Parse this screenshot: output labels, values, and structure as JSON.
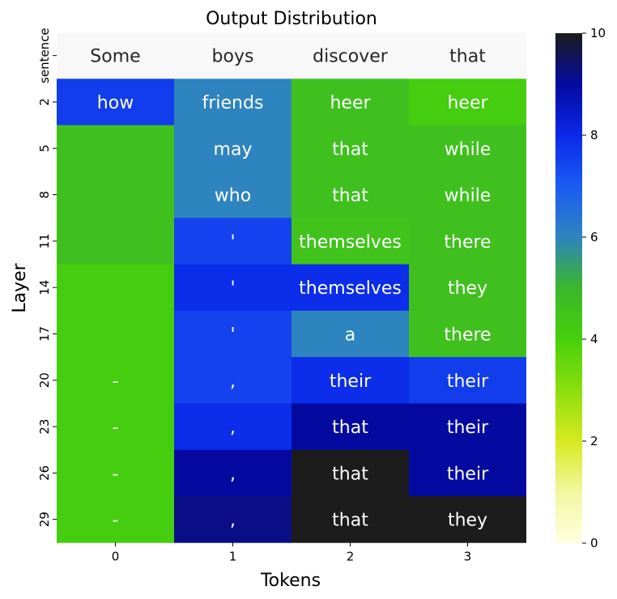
{
  "chart_data": {
    "type": "heatmap",
    "title": "Output Distribution",
    "xlabel": "Tokens",
    "ylabel": "Layer",
    "x_ticks": [
      "0",
      "1",
      "2",
      "3"
    ],
    "y_ticks": [
      "sentence",
      "2",
      "5",
      "8",
      "11",
      "14",
      "17",
      "20",
      "23",
      "26",
      "29"
    ],
    "colorbar": {
      "min": 0,
      "max": 10,
      "ticks": [
        "0",
        "2",
        "4",
        "6",
        "8",
        "10"
      ]
    },
    "rows": [
      {
        "layer": "sentence",
        "cells": [
          {
            "token": "Some",
            "value": null
          },
          {
            "token": "boys",
            "value": null
          },
          {
            "token": "discover",
            "value": null
          },
          {
            "token": "that",
            "value": null
          }
        ]
      },
      {
        "layer": "2",
        "cells": [
          {
            "token": "how",
            "value": 7.6
          },
          {
            "token": "friends",
            "value": 6.0
          },
          {
            "token": "heer",
            "value": 4.6
          },
          {
            "token": "heer",
            "value": 4.1
          }
        ]
      },
      {
        "layer": "5",
        "cells": [
          {
            "token": "",
            "value": 4.6
          },
          {
            "token": "may",
            "value": 6.0
          },
          {
            "token": "that",
            "value": 4.6
          },
          {
            "token": "while",
            "value": 4.6
          }
        ]
      },
      {
        "layer": "8",
        "cells": [
          {
            "token": "",
            "value": 4.6
          },
          {
            "token": "who",
            "value": 6.0
          },
          {
            "token": "that",
            "value": 4.6
          },
          {
            "token": "while",
            "value": 4.6
          }
        ]
      },
      {
        "layer": "11",
        "cells": [
          {
            "token": "",
            "value": 4.6
          },
          {
            "token": "'",
            "value": 7.5
          },
          {
            "token": "themselves",
            "value": 4.5
          },
          {
            "token": "there",
            "value": 4.6
          }
        ]
      },
      {
        "layer": "14",
        "cells": [
          {
            "token": "",
            "value": 4.1
          },
          {
            "token": "'",
            "value": 7.9
          },
          {
            "token": "themselves",
            "value": 7.9
          },
          {
            "token": "they",
            "value": 4.6
          }
        ]
      },
      {
        "layer": "17",
        "cells": [
          {
            "token": "",
            "value": 4.1
          },
          {
            "token": "'",
            "value": 7.5
          },
          {
            "token": "a",
            "value": 6.0
          },
          {
            "token": "there",
            "value": 4.6
          }
        ]
      },
      {
        "layer": "20",
        "cells": [
          {
            "token": "-",
            "value": 4.1
          },
          {
            "token": ",",
            "value": 7.5
          },
          {
            "token": "their",
            "value": 7.9
          },
          {
            "token": "their",
            "value": 7.6
          }
        ]
      },
      {
        "layer": "23",
        "cells": [
          {
            "token": "-",
            "value": 4.1
          },
          {
            "token": ",",
            "value": 7.9
          },
          {
            "token": "that",
            "value": 9.0
          },
          {
            "token": "their",
            "value": 9.0
          }
        ]
      },
      {
        "layer": "26",
        "cells": [
          {
            "token": "-",
            "value": 4.1
          },
          {
            "token": ",",
            "value": 9.0
          },
          {
            "token": "that",
            "value": 10.0
          },
          {
            "token": "their",
            "value": 9.0
          }
        ]
      },
      {
        "layer": "29",
        "cells": [
          {
            "token": "-",
            "value": 4.1
          },
          {
            "token": ",",
            "value": 9.2
          },
          {
            "token": "that",
            "value": 10.0
          },
          {
            "token": "they",
            "value": 10.0
          }
        ]
      }
    ]
  }
}
